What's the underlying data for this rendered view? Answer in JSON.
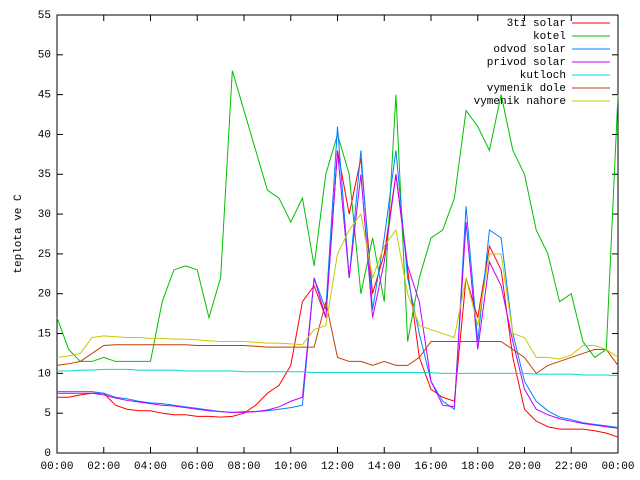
{
  "chart_data": {
    "type": "line",
    "y_label": "teplota ve C",
    "x": [
      0,
      0.5,
      1,
      1.5,
      2,
      2.5,
      3,
      3.5,
      4,
      4.5,
      5,
      5.5,
      6,
      6.5,
      7,
      7.5,
      8,
      8.5,
      9,
      9.5,
      10,
      10.5,
      11,
      11.5,
      12,
      12.5,
      13,
      13.5,
      14,
      14.5,
      15,
      15.5,
      16,
      16.5,
      17,
      17.5,
      18,
      18.5,
      19,
      19.5,
      20,
      20.5,
      21,
      21.5,
      22,
      22.5,
      23,
      23.5,
      24
    ],
    "xlim": [
      0,
      24
    ],
    "xticks": [
      {
        "value": 0,
        "label": "00:00"
      },
      {
        "value": 2,
        "label": "02:00"
      },
      {
        "value": 4,
        "label": "04:00"
      },
      {
        "value": 6,
        "label": "06:00"
      },
      {
        "value": 8,
        "label": "08:00"
      },
      {
        "value": 10,
        "label": "10:00"
      },
      {
        "value": 12,
        "label": "12:00"
      },
      {
        "value": 14,
        "label": "14:00"
      },
      {
        "value": 16,
        "label": "16:00"
      },
      {
        "value": 18,
        "label": "18:00"
      },
      {
        "value": 20,
        "label": "20:00"
      },
      {
        "value": 22,
        "label": "22:00"
      },
      {
        "value": 24,
        "label": "00:00"
      }
    ],
    "ylim": [
      0,
      55
    ],
    "yticks": [
      0,
      5,
      10,
      15,
      20,
      25,
      30,
      35,
      40,
      45,
      50,
      55
    ],
    "legend": "top-right",
    "series": [
      {
        "name": "3ti solar",
        "color": "#ff0000",
        "values": [
          7,
          7,
          7.3,
          7.5,
          7.5,
          6,
          5.5,
          5.3,
          5.3,
          5,
          4.8,
          4.8,
          4.6,
          4.6,
          4.5,
          4.6,
          5,
          6,
          7.5,
          8.5,
          11,
          19,
          21,
          17,
          38,
          30,
          37,
          20,
          25,
          35,
          23,
          12,
          8,
          7,
          6.5,
          22,
          17,
          26,
          23,
          12,
          5.5,
          4,
          3.3,
          3,
          3,
          3,
          2.8,
          2.5,
          2
        ]
      },
      {
        "name": "kotel",
        "color": "#00c000",
        "values": [
          17,
          13,
          11.5,
          11.5,
          12,
          11.5,
          11.5,
          11.5,
          11.5,
          19,
          23,
          23.5,
          23,
          17,
          22,
          48,
          43,
          38,
          33,
          32,
          29,
          32,
          23.5,
          35,
          40,
          35,
          20,
          27,
          19,
          45,
          14,
          22,
          27,
          28,
          32,
          43,
          41,
          38,
          45,
          38,
          35,
          28,
          25,
          19,
          20,
          14,
          12,
          13,
          45
        ]
      },
      {
        "name": "odvod solar",
        "color": "#0080ff",
        "values": [
          7.7,
          7.7,
          7.7,
          7.7,
          7.5,
          7,
          6.8,
          6.5,
          6.3,
          6.2,
          6,
          5.8,
          5.6,
          5.4,
          5.2,
          5.1,
          5.2,
          5.2,
          5.3,
          5.5,
          5.7,
          6,
          22,
          18,
          41,
          22,
          38,
          18,
          27,
          38,
          22,
          15,
          9,
          6.5,
          5.5,
          31,
          14,
          28,
          27,
          15,
          9,
          6.5,
          5.3,
          4.5,
          4.2,
          3.8,
          3.6,
          3.4,
          3.2
        ]
      },
      {
        "name": "privod solar",
        "color": "#c000ff",
        "values": [
          7.5,
          7.5,
          7.5,
          7.5,
          7.3,
          6.9,
          6.6,
          6.4,
          6.2,
          6,
          5.9,
          5.7,
          5.5,
          5.3,
          5.2,
          5.1,
          5.1,
          5.2,
          5.4,
          5.8,
          6.5,
          7,
          22,
          17,
          38,
          22,
          35,
          17,
          24,
          35,
          23.5,
          19,
          9,
          6,
          5.8,
          29,
          13,
          24,
          21,
          14,
          8,
          5.5,
          4.8,
          4.3,
          4,
          3.7,
          3.5,
          3.3,
          3.1
        ]
      },
      {
        "name": "kutloch",
        "color": "#00d8d8",
        "values": [
          10.3,
          10.3,
          10.4,
          10.4,
          10.5,
          10.5,
          10.5,
          10.4,
          10.4,
          10.4,
          10.4,
          10.3,
          10.3,
          10.3,
          10.3,
          10.3,
          10.2,
          10.2,
          10.2,
          10.2,
          10.2,
          10.2,
          10.1,
          10.1,
          10.1,
          10.1,
          10.1,
          10.1,
          10.1,
          10.1,
          10.1,
          10.1,
          10.1,
          10,
          10,
          10,
          10,
          10,
          10,
          10,
          10,
          9.9,
          9.9,
          9.9,
          9.9,
          9.8,
          9.8,
          9.8,
          9.7
        ]
      },
      {
        "name": "vymenik dole",
        "color": "#c04000",
        "values": [
          11,
          11.2,
          11.5,
          12.5,
          13.5,
          13.6,
          13.6,
          13.6,
          13.6,
          13.6,
          13.6,
          13.6,
          13.5,
          13.5,
          13.5,
          13.5,
          13.5,
          13.4,
          13.3,
          13.3,
          13.3,
          13.3,
          13.3,
          19,
          12,
          11.5,
          11.5,
          11,
          11.5,
          11,
          11,
          12,
          14,
          14,
          14,
          14,
          14,
          14,
          14,
          13,
          12,
          10,
          11,
          11.5,
          12,
          12.5,
          13,
          13,
          11
        ]
      },
      {
        "name": "vymenik nahore",
        "color": "#c8c800",
        "values": [
          12,
          12.2,
          12.5,
          14.5,
          14.7,
          14.6,
          14.5,
          14.5,
          14.4,
          14.4,
          14.3,
          14.3,
          14.2,
          14.1,
          14,
          14,
          14,
          13.9,
          13.8,
          13.8,
          13.7,
          13.6,
          15.5,
          16,
          25,
          28,
          30,
          22,
          26,
          28,
          20,
          16,
          15.5,
          15,
          14.5,
          22,
          16,
          25,
          25,
          15,
          14.5,
          12,
          12,
          11.8,
          12.3,
          13.5,
          13.5,
          13,
          12
        ]
      }
    ]
  }
}
